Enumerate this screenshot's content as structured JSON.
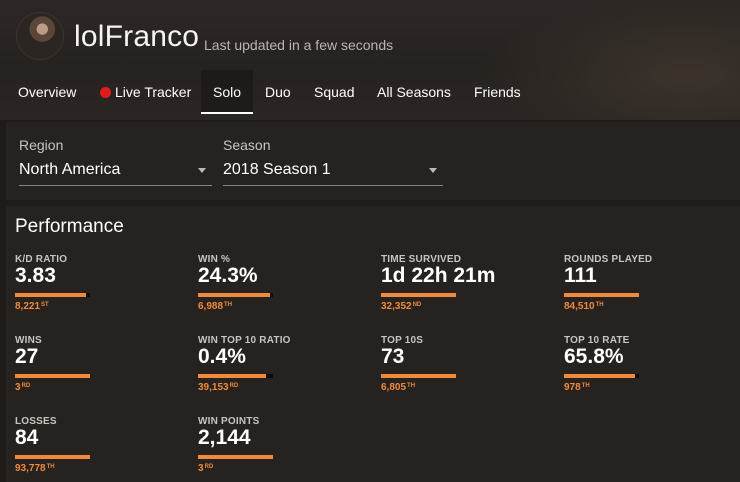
{
  "profile": {
    "username": "lolFranco",
    "updated": "Last updated in a few seconds"
  },
  "tabs": [
    {
      "label": "Overview",
      "active": false
    },
    {
      "label": "Live Tracker",
      "active": false,
      "live": true
    },
    {
      "label": "Solo",
      "active": true
    },
    {
      "label": "Duo",
      "active": false
    },
    {
      "label": "Squad",
      "active": false
    },
    {
      "label": "All Seasons",
      "active": false
    },
    {
      "label": "Friends",
      "active": false
    }
  ],
  "filters": {
    "region": {
      "label": "Region",
      "value": "North America"
    },
    "season": {
      "label": "Season",
      "value": "2018 Season 1"
    }
  },
  "performance": {
    "title": "Performance",
    "stats": [
      {
        "label": "K/D RATIO",
        "value": "3.83",
        "rank": "8,221",
        "suffix": "ST",
        "fill": 0.95
      },
      {
        "label": "WIN %",
        "value": "24.3%",
        "rank": "6,988",
        "suffix": "TH",
        "fill": 0.96
      },
      {
        "label": "TIME SURVIVED",
        "value": "1d 22h 21m",
        "rank": "32,352",
        "suffix": "ND",
        "fill": 1.0
      },
      {
        "label": "ROUNDS PLAYED",
        "value": "111",
        "rank": "84,510",
        "suffix": "TH",
        "fill": 1.0
      },
      {
        "label": "WINS",
        "value": "27",
        "rank": "3",
        "suffix": "RD",
        "fill": 1.0
      },
      {
        "label": "WIN TOP 10 RATIO",
        "value": "0.4%",
        "rank": "39,153",
        "suffix": "RD",
        "fill": 0.9
      },
      {
        "label": "TOP 10S",
        "value": "73",
        "rank": "6,805",
        "suffix": "TH",
        "fill": 1.0
      },
      {
        "label": "TOP 10 RATE",
        "value": "65.8%",
        "rank": "978",
        "suffix": "TH",
        "fill": 0.95
      },
      {
        "label": "LOSSES",
        "value": "84",
        "rank": "93,778",
        "suffix": "TH",
        "fill": 1.0
      },
      {
        "label": "WIN POINTS",
        "value": "2,144",
        "rank": "3",
        "suffix": "RD",
        "fill": 1.0
      }
    ]
  },
  "colors": {
    "accent": "#f08a3c",
    "live": "#e21b1b",
    "panel": "#26221f",
    "background": "#1e1b19"
  }
}
